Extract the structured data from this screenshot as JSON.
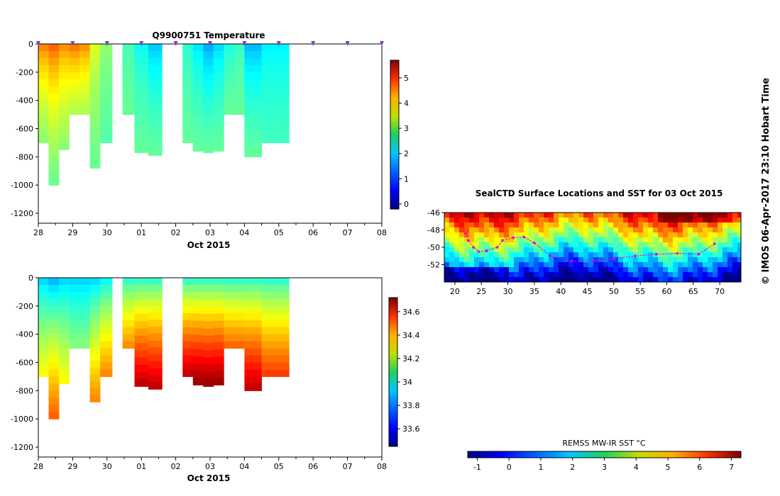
{
  "chart_data": [
    {
      "type": "heatmap",
      "title": "Q9900751  Temperature",
      "xlabel": "Oct 2015",
      "x_ticks": [
        "28",
        "29",
        "30",
        "01",
        "02",
        "03",
        "04",
        "05",
        "06",
        "07",
        "08"
      ],
      "y_ticks": [
        "0",
        "-200",
        "-400",
        "-600",
        "-800",
        "-1000",
        "-1200"
      ],
      "ylim": [
        -1270,
        0
      ],
      "colorbar_ticks": [
        "0",
        "1",
        "2",
        "3",
        "4",
        "5"
      ],
      "colorbar_range": [
        -0.2,
        5.7
      ],
      "profiles": [
        {
          "x": 0.0,
          "w": 0.3,
          "depth": 700,
          "surface": 4.4,
          "deep": 2.8
        },
        {
          "x": 0.3,
          "w": 0.3,
          "depth": 1000,
          "surface": 4.6,
          "deep": 2.6
        },
        {
          "x": 0.6,
          "w": 0.3,
          "depth": 750,
          "surface": 4.3,
          "deep": 2.8
        },
        {
          "x": 0.9,
          "w": 0.3,
          "depth": 500,
          "surface": 4.5,
          "deep": 3.0
        },
        {
          "x": 1.2,
          "w": 0.3,
          "depth": 500,
          "surface": 4.3,
          "deep": 3.0
        },
        {
          "x": 1.5,
          "w": 0.3,
          "depth": 880,
          "surface": 3.4,
          "deep": 2.6
        },
        {
          "x": 1.8,
          "w": 0.35,
          "depth": 700,
          "surface": 2.9,
          "deep": 2.5
        },
        {
          "x": 2.45,
          "w": 0.35,
          "depth": 500,
          "surface": 2.4,
          "deep": 2.6
        },
        {
          "x": 2.8,
          "w": 0.4,
          "depth": 770,
          "surface": 2.0,
          "deep": 2.6
        },
        {
          "x": 3.2,
          "w": 0.4,
          "depth": 790,
          "surface": 1.6,
          "deep": 2.6
        },
        {
          "x": 4.2,
          "w": 0.3,
          "depth": 700,
          "surface": 2.2,
          "deep": 2.6
        },
        {
          "x": 4.5,
          "w": 0.3,
          "depth": 760,
          "surface": 1.8,
          "deep": 2.6
        },
        {
          "x": 4.8,
          "w": 0.3,
          "depth": 770,
          "surface": 1.4,
          "deep": 2.6
        },
        {
          "x": 5.1,
          "w": 0.3,
          "depth": 760,
          "surface": 1.7,
          "deep": 2.6
        },
        {
          "x": 5.4,
          "w": 0.3,
          "depth": 500,
          "surface": 2.1,
          "deep": 2.6
        },
        {
          "x": 5.7,
          "w": 0.3,
          "depth": 500,
          "surface": 2.3,
          "deep": 2.6
        },
        {
          "x": 6.0,
          "w": 0.5,
          "depth": 800,
          "surface": 1.5,
          "deep": 2.6
        },
        {
          "x": 6.5,
          "w": 0.8,
          "depth": 700,
          "surface": 1.9,
          "deep": 2.4
        }
      ],
      "markers": [
        0.0,
        1.0,
        2.0,
        3.0,
        4.0,
        5.0,
        6.0,
        7.0,
        8.0,
        9.0,
        10.0
      ]
    },
    {
      "type": "heatmap",
      "title": "",
      "xlabel": "Oct 2015",
      "x_ticks": [
        "28",
        "29",
        "30",
        "01",
        "02",
        "03",
        "04",
        "05",
        "06",
        "07",
        "08"
      ],
      "y_ticks": [
        "0",
        "-200",
        "-400",
        "-600",
        "-800",
        "-1000",
        "-1200"
      ],
      "ylim": [
        -1270,
        0
      ],
      "colorbar_ticks": [
        "33.6",
        "33.8",
        "34",
        "34.2",
        "34.4",
        "34.6"
      ],
      "colorbar_range": [
        33.45,
        34.72
      ],
      "profiles": [
        {
          "x": 0.0,
          "w": 0.3,
          "depth": 700,
          "surface": 33.85,
          "deep": 34.25
        },
        {
          "x": 0.3,
          "w": 0.3,
          "depth": 1000,
          "surface": 33.8,
          "deep": 34.45
        },
        {
          "x": 0.6,
          "w": 0.3,
          "depth": 750,
          "surface": 33.85,
          "deep": 34.25
        },
        {
          "x": 0.9,
          "w": 0.3,
          "depth": 500,
          "surface": 33.85,
          "deep": 34.1
        },
        {
          "x": 1.2,
          "w": 0.3,
          "depth": 500,
          "surface": 33.85,
          "deep": 34.1
        },
        {
          "x": 1.5,
          "w": 0.3,
          "depth": 880,
          "surface": 33.85,
          "deep": 34.4
        },
        {
          "x": 1.8,
          "w": 0.35,
          "depth": 700,
          "surface": 33.9,
          "deep": 34.4
        },
        {
          "x": 2.45,
          "w": 0.35,
          "depth": 500,
          "surface": 33.95,
          "deep": 34.4
        },
        {
          "x": 2.8,
          "w": 0.4,
          "depth": 770,
          "surface": 33.95,
          "deep": 34.65
        },
        {
          "x": 3.2,
          "w": 0.4,
          "depth": 790,
          "surface": 33.95,
          "deep": 34.65
        },
        {
          "x": 4.2,
          "w": 0.3,
          "depth": 700,
          "surface": 33.95,
          "deep": 34.65
        },
        {
          "x": 4.5,
          "w": 0.3,
          "depth": 760,
          "surface": 33.95,
          "deep": 34.7
        },
        {
          "x": 4.8,
          "w": 0.3,
          "depth": 770,
          "surface": 33.95,
          "deep": 34.7
        },
        {
          "x": 5.1,
          "w": 0.3,
          "depth": 760,
          "surface": 33.95,
          "deep": 34.7
        },
        {
          "x": 5.4,
          "w": 0.3,
          "depth": 500,
          "surface": 33.95,
          "deep": 34.45
        },
        {
          "x": 5.7,
          "w": 0.3,
          "depth": 500,
          "surface": 33.95,
          "deep": 34.45
        },
        {
          "x": 6.0,
          "w": 0.5,
          "depth": 800,
          "surface": 33.95,
          "deep": 34.65
        },
        {
          "x": 6.5,
          "w": 0.8,
          "depth": 700,
          "surface": 33.95,
          "deep": 34.5
        }
      ]
    },
    {
      "type": "heatmap",
      "title": "SealCTD Surface Locations and SST for 03 Oct 2015",
      "x_ticks": [
        "20",
        "25",
        "30",
        "35",
        "40",
        "45",
        "50",
        "55",
        "60",
        "65",
        "70"
      ],
      "x_values": [
        20,
        25,
        30,
        35,
        40,
        45,
        50,
        55,
        60,
        65,
        70
      ],
      "xlim": [
        18,
        74
      ],
      "y_ticks": [
        "-46",
        "-48",
        "-50",
        "-52"
      ],
      "y_values": [
        -46,
        -48,
        -50,
        -52
      ],
      "ylim": [
        -54,
        -46
      ],
      "track": [
        [
          22,
          -48.4
        ],
        [
          22.5,
          -49.2
        ],
        [
          23.5,
          -50.0
        ],
        [
          24.5,
          -50.5
        ],
        [
          26,
          -50.4
        ],
        [
          28,
          -50.0
        ],
        [
          29,
          -49.2
        ],
        [
          31,
          -48.9
        ],
        [
          33,
          -48.8
        ],
        [
          35,
          -49.5
        ],
        [
          38,
          -51.0
        ],
        [
          42,
          -51.6
        ],
        [
          46,
          -51.5
        ],
        [
          50,
          -51.3
        ],
        [
          54,
          -51.0
        ],
        [
          58,
          -50.8
        ],
        [
          62,
          -50.7
        ],
        [
          66,
          -50.8
        ],
        [
          69,
          -49.6
        ]
      ],
      "track_color": "#e000e0"
    }
  ],
  "sst_colorbar": {
    "label": "REMSS MW-IR SST °C",
    "ticks": [
      "-1",
      "0",
      "1",
      "2",
      "3",
      "4",
      "5",
      "6",
      "7"
    ],
    "range": [
      -1.3,
      7.3
    ]
  },
  "side_text": "© IMOS 06-Apr-2017 23:10 Hobart Time",
  "colors": {
    "marker": "#8040c0",
    "track": "#e000e0",
    "axis": "#000000"
  }
}
